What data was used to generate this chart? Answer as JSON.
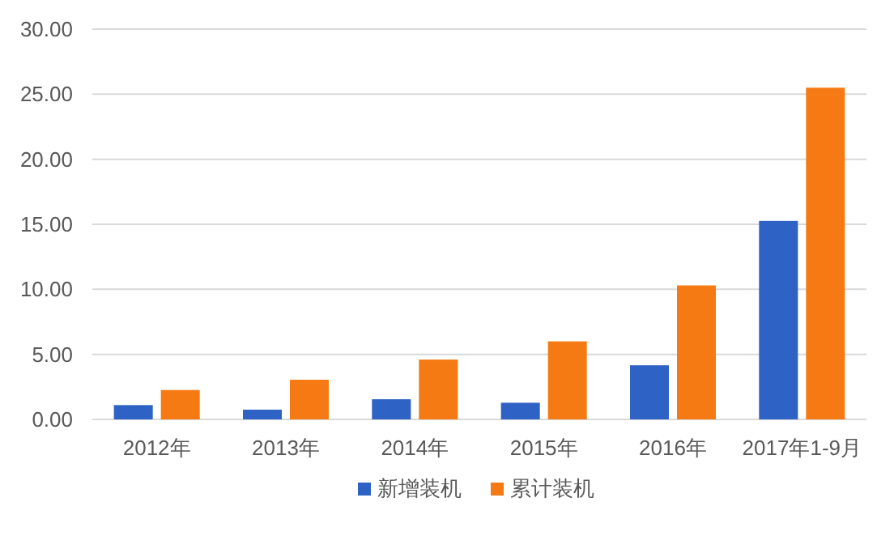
{
  "chart_data": {
    "type": "bar",
    "categories": [
      "2012年",
      "2013年",
      "2014年",
      "2015年",
      "2016年",
      "2017年1-9月"
    ],
    "series": [
      {
        "name": "新增装机",
        "color": "#2e62c4",
        "values": [
          1.1,
          0.75,
          1.55,
          1.28,
          4.16,
          15.26
        ]
      },
      {
        "name": "累计装机",
        "color": "#f57a14",
        "values": [
          2.26,
          3.05,
          4.6,
          6.0,
          10.3,
          25.5
        ]
      }
    ],
    "ylim": [
      0,
      30
    ],
    "yticks": [
      {
        "value": 0,
        "label": "0.00"
      },
      {
        "value": 5,
        "label": "5.00"
      },
      {
        "value": 10,
        "label": "10.00"
      },
      {
        "value": 15,
        "label": "15.00"
      },
      {
        "value": 20,
        "label": "20.00"
      },
      {
        "value": 25,
        "label": "25.00"
      },
      {
        "value": 30,
        "label": "30.00"
      }
    ],
    "grid": "y",
    "legend": "bottom"
  }
}
